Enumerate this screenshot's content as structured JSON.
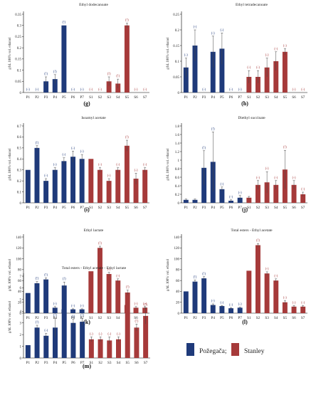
{
  "colors": {
    "pozegaca": "#1f3a7a",
    "stanley": "#a63a3a",
    "axis": "#000000",
    "sig_blue": "#1f3a7a",
    "sig_red": "#a63a3a"
  },
  "legend": {
    "items": [
      {
        "label": "Požegača;",
        "color": "#1f3a7a"
      },
      {
        "label": "Stanley",
        "color": "#a63a3a"
      }
    ]
  },
  "chart_data": [
    {
      "panel": "(g)",
      "title": "Ethyl dodecanoate",
      "ylabel": "g/hL 100% vol. ethanol",
      "type": "bar",
      "categories": [
        "P1",
        "P2",
        "P3",
        "P4",
        "P5",
        "P6",
        "P7",
        "S1",
        "S2",
        "S3",
        "S4",
        "S5",
        "S6",
        "S7"
      ],
      "values": [
        0,
        0,
        0.05,
        0.06,
        0.3,
        0,
        0,
        0,
        0,
        0.05,
        0.04,
        0.3,
        0,
        0
      ],
      "errors": [
        0,
        0,
        0.02,
        0.02,
        0,
        0,
        0,
        0,
        0,
        0.02,
        0.02,
        0.01,
        0,
        0
      ],
      "labels": [
        "(-)",
        "(-)",
        "(!)",
        "(!)",
        "(!)",
        "(-)",
        "(-)",
        "(-)",
        "(-)",
        "(!)",
        "(!)",
        "(!)",
        "(-)",
        "(-)"
      ],
      "yticks": [
        0,
        0.05,
        0.1,
        0.15,
        0.2,
        0.25,
        0.3,
        0.35
      ],
      "ylim": [
        0,
        0.35
      ]
    },
    {
      "panel": "(h)",
      "title": "Ethyl tetradecanoate",
      "ylabel": "g/hL 100% vol. ethanol",
      "type": "bar",
      "categories": [
        "P1",
        "P2",
        "P3",
        "P4",
        "P5",
        "P6",
        "P7",
        "S1",
        "S2",
        "S3",
        "S4",
        "S5",
        "S6",
        "S7"
      ],
      "values": [
        0.08,
        0.15,
        0,
        0.13,
        0.14,
        0,
        0,
        0.05,
        0.05,
        0.08,
        0.1,
        0.13,
        0,
        0
      ],
      "errors": [
        0.03,
        0.05,
        0,
        0.05,
        0.05,
        0,
        0,
        0.02,
        0.02,
        0.03,
        0.03,
        0.01,
        0,
        0
      ],
      "labels": [
        "(-)",
        "(-)",
        "(-)",
        "(-)",
        "(-)",
        "(-)",
        "(-)",
        "(-)",
        "(-)",
        "(-)",
        "(-)",
        "(-)",
        "(-)",
        "(-)"
      ],
      "yticks": [
        0,
        0.05,
        0.1,
        0.15,
        0.2,
        0.25
      ],
      "ylim": [
        0,
        0.25
      ]
    },
    {
      "panel": "(i)",
      "title": "Isoamyl acetate",
      "ylabel": "g/hL 100% vol. ethanol",
      "type": "bar",
      "categories": [
        "P1",
        "P2",
        "P3",
        "P4",
        "P5",
        "P6",
        "P7",
        "S1",
        "S2",
        "S3",
        "S4",
        "S5",
        "S6",
        "S7"
      ],
      "values": [
        0.3,
        0.5,
        0.2,
        0.3,
        0.38,
        0.42,
        0.4,
        0.4,
        0.3,
        0.2,
        0.3,
        0.52,
        0.22,
        0.3
      ],
      "errors": [
        0,
        0.02,
        0.02,
        0.02,
        0.03,
        0.05,
        0.04,
        0,
        0.02,
        0.02,
        0.02,
        0.05,
        0.05,
        0.02
      ],
      "labels": [
        "",
        "(!)",
        "(-)",
        "(-)",
        "(-)",
        "(-)",
        "(-)",
        "",
        "(-)",
        "(-)",
        "(-)",
        "(!)",
        "(-)",
        "(-)"
      ],
      "yticks": [
        0,
        0.1,
        0.2,
        0.3,
        0.4,
        0.5,
        0.6,
        0.7
      ],
      "ylim": [
        0,
        0.7
      ]
    },
    {
      "panel": "(j)",
      "title": "Diethyl succinate",
      "ylabel": "g/hL 100% vol. ethanol",
      "type": "bar",
      "categories": [
        "P1",
        "P2",
        "P3",
        "P4",
        "P5",
        "P6",
        "P7",
        "S1",
        "S2",
        "S3",
        "S4",
        "S5",
        "S6",
        "S7"
      ],
      "values": [
        0.07,
        0.07,
        0.82,
        0.96,
        0.32,
        0.05,
        0.12,
        0.12,
        0.42,
        0.48,
        0.42,
        0.78,
        0.42,
        0.2
      ],
      "errors": [
        0.02,
        0.02,
        0.4,
        0.7,
        0.05,
        0.02,
        0.05,
        0.03,
        0.1,
        0.25,
        0.1,
        0.45,
        0.1,
        0.05
      ],
      "labels": [
        "",
        "",
        "(!)",
        "(!)",
        "(-)",
        "(-)",
        "(-)",
        "",
        "(-)",
        "(-)",
        "(-)",
        "(!)",
        "(-)",
        "(-)"
      ],
      "yticks": [
        0,
        0.2,
        0.4,
        0.6,
        0.8,
        1,
        1.2,
        1.4,
        1.6,
        1.8
      ],
      "ylim": [
        0,
        1.8
      ]
    },
    {
      "panel": "(k)",
      "title": "Ethyl lactate",
      "ylabel": "g/hL 100% vol. ethanol",
      "type": "bar",
      "categories": [
        "P1",
        "P2",
        "P3",
        "P4",
        "P5",
        "P6",
        "P7",
        "S1",
        "S2",
        "S3",
        "S4",
        "S5",
        "S6",
        "S7"
      ],
      "values": [
        37,
        55,
        62,
        10,
        7,
        7,
        7,
        77,
        120,
        72,
        60,
        15,
        10,
        10
      ],
      "errors": [
        0,
        3,
        3,
        2,
        1,
        1,
        1,
        0,
        3,
        3,
        3,
        3,
        2,
        2
      ],
      "labels": [
        "",
        "(!)",
        "(!)",
        "(-)",
        "(-)",
        "(-)",
        "(-)",
        "",
        "(!)",
        "(-)",
        "(-)",
        "(-)",
        "(-)",
        "(-)"
      ],
      "yticks": [
        0,
        20,
        40,
        60,
        80,
        100,
        120,
        140
      ],
      "ylim": [
        0,
        140
      ]
    },
    {
      "panel": "(l)",
      "title": "Total esters - Ethyl acetate",
      "ylabel": "g/hL 100% vol. ethanol",
      "type": "bar",
      "categories": [
        "P1",
        "P2",
        "P3",
        "P4",
        "P5",
        "P6",
        "P7",
        "S1",
        "S2",
        "S3",
        "S4",
        "S5",
        "S6",
        "S7"
      ],
      "values": [
        40,
        58,
        64,
        15,
        13,
        9,
        10,
        78,
        125,
        73,
        60,
        20,
        12,
        12
      ],
      "errors": [
        0,
        3,
        3,
        2,
        1,
        1,
        1,
        0,
        3,
        3,
        3,
        3,
        2,
        2
      ],
      "labels": [
        "",
        "(!)",
        "(!)",
        "(-)",
        "(-)",
        "(-)",
        "(-)",
        "",
        "(!)",
        "(-)",
        "(-)",
        "(-)",
        "(-)",
        "(-)"
      ],
      "yticks": [
        0,
        20,
        40,
        60,
        80,
        100,
        120,
        140
      ],
      "ylim": [
        0,
        140
      ]
    },
    {
      "panel": "(m)",
      "title": "Total esters - Ethyl acetate - Ethyl lactate",
      "ylabel": "g/hL 100% vol. ethanol",
      "type": "bar",
      "categories": [
        "P1",
        "P2",
        "P3",
        "P4",
        "P5",
        "P6",
        "P7",
        "S1",
        "S2",
        "S3",
        "S4",
        "S5",
        "S6",
        "S7"
      ],
      "values": [
        1.1,
        2.6,
        1.9,
        2.6,
        6.2,
        3.0,
        3.1,
        1.6,
        1.6,
        1.5,
        1.6,
        5.6,
        2.6,
        3.6
      ],
      "errors": [
        0,
        0.2,
        0.2,
        0.8,
        0.3,
        0.3,
        0.3,
        0.2,
        0.2,
        0.3,
        0.2,
        0.2,
        0.3,
        0.7
      ],
      "labels": [
        "",
        "(!)",
        "(-)",
        "(!)",
        "(!)",
        "(!)",
        "(!)",
        "(-)",
        "(-)",
        "(-)",
        "(-)",
        "(!)",
        "(!)",
        "(!)"
      ],
      "yticks": [
        0,
        1,
        2,
        3,
        4,
        5,
        6,
        7
      ],
      "ylim": [
        0,
        7
      ]
    }
  ]
}
